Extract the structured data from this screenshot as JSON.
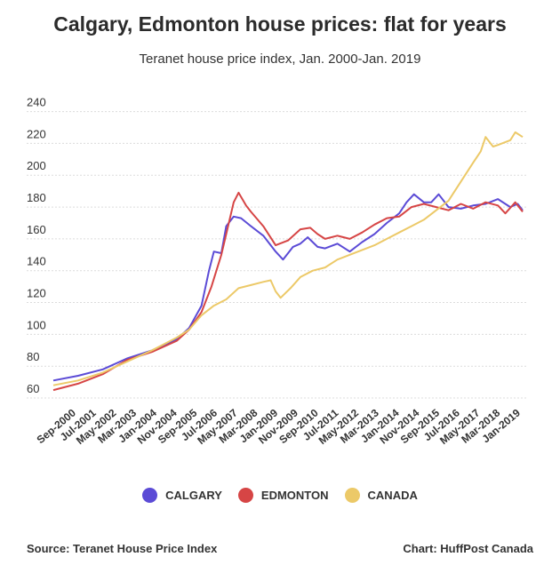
{
  "chart_data": {
    "type": "line",
    "title": "Calgary, Edmonton house prices: flat for years",
    "subtitle": "Teranet house price index, Jan. 2000-Jan. 2019",
    "x_tick_labels": [
      "Sep-2000",
      "Jul-2001",
      "May-2002",
      "Mar-2003",
      "Jan-2004",
      "Nov-2004",
      "Sep-2005",
      "Jul-2006",
      "May-2007",
      "Mar-2008",
      "Jan-2009",
      "Nov-2009",
      "Sep-2010",
      "Jul-2011",
      "May-2012",
      "Mar-2013",
      "Jan-2014",
      "Nov-2014",
      "Sep-2015",
      "Jul-2016",
      "May-2017",
      "Mar-2018",
      "Jan-2019"
    ],
    "y_ticks": [
      60,
      80,
      100,
      120,
      140,
      160,
      180,
      200,
      220,
      240
    ],
    "ylim": [
      55,
      242
    ],
    "xlim": [
      2000.0,
      2019.0
    ],
    "grid": true,
    "legend_position": "bottom",
    "series": [
      {
        "name": "CALGARY",
        "color": "#5b4bd6",
        "points": [
          [
            2000.0,
            71
          ],
          [
            2001.0,
            74
          ],
          [
            2002.0,
            78
          ],
          [
            2003.0,
            85
          ],
          [
            2004.0,
            90
          ],
          [
            2005.0,
            97
          ],
          [
            2005.5,
            104
          ],
          [
            2006.0,
            118
          ],
          [
            2006.3,
            140
          ],
          [
            2006.5,
            152
          ],
          [
            2006.8,
            151
          ],
          [
            2007.0,
            168
          ],
          [
            2007.3,
            174
          ],
          [
            2007.6,
            173
          ],
          [
            2008.0,
            168
          ],
          [
            2008.5,
            162
          ],
          [
            2009.0,
            152
          ],
          [
            2009.3,
            147
          ],
          [
            2009.7,
            155
          ],
          [
            2010.0,
            157
          ],
          [
            2010.3,
            161
          ],
          [
            2010.7,
            155
          ],
          [
            2011.0,
            154
          ],
          [
            2011.5,
            157
          ],
          [
            2012.0,
            152
          ],
          [
            2012.5,
            158
          ],
          [
            2013.0,
            163
          ],
          [
            2013.5,
            170
          ],
          [
            2014.0,
            176
          ],
          [
            2014.3,
            183
          ],
          [
            2014.6,
            188
          ],
          [
            2015.0,
            183
          ],
          [
            2015.3,
            183
          ],
          [
            2015.6,
            188
          ],
          [
            2016.0,
            180
          ],
          [
            2016.5,
            179
          ],
          [
            2017.0,
            181
          ],
          [
            2017.5,
            182
          ],
          [
            2018.0,
            185
          ],
          [
            2018.5,
            180
          ],
          [
            2018.8,
            182
          ],
          [
            2019.0,
            178
          ]
        ]
      },
      {
        "name": "EDMONTON",
        "color": "#d64545",
        "points": [
          [
            2000.0,
            65
          ],
          [
            2001.0,
            69
          ],
          [
            2002.0,
            75
          ],
          [
            2003.0,
            84
          ],
          [
            2004.0,
            89
          ],
          [
            2005.0,
            96
          ],
          [
            2005.5,
            103
          ],
          [
            2006.0,
            114
          ],
          [
            2006.4,
            130
          ],
          [
            2006.8,
            150
          ],
          [
            2007.0,
            163
          ],
          [
            2007.3,
            183
          ],
          [
            2007.5,
            189
          ],
          [
            2007.8,
            181
          ],
          [
            2008.0,
            177
          ],
          [
            2008.5,
            168
          ],
          [
            2009.0,
            156
          ],
          [
            2009.5,
            159
          ],
          [
            2010.0,
            166
          ],
          [
            2010.4,
            167
          ],
          [
            2010.7,
            163
          ],
          [
            2011.0,
            160
          ],
          [
            2011.5,
            162
          ],
          [
            2012.0,
            160
          ],
          [
            2012.5,
            164
          ],
          [
            2013.0,
            169
          ],
          [
            2013.5,
            173
          ],
          [
            2014.0,
            174
          ],
          [
            2014.5,
            180
          ],
          [
            2015.0,
            182
          ],
          [
            2015.5,
            180
          ],
          [
            2016.0,
            178
          ],
          [
            2016.5,
            182
          ],
          [
            2017.0,
            179
          ],
          [
            2017.5,
            183
          ],
          [
            2018.0,
            181
          ],
          [
            2018.3,
            176
          ],
          [
            2018.7,
            183
          ],
          [
            2019.0,
            177
          ]
        ]
      },
      {
        "name": "CANADA",
        "color": "#ecc968",
        "points": [
          [
            2000.0,
            68
          ],
          [
            2001.0,
            71
          ],
          [
            2002.0,
            76
          ],
          [
            2003.0,
            83
          ],
          [
            2004.0,
            90
          ],
          [
            2005.0,
            98
          ],
          [
            2005.5,
            103
          ],
          [
            2006.0,
            112
          ],
          [
            2006.5,
            118
          ],
          [
            2007.0,
            122
          ],
          [
            2007.5,
            129
          ],
          [
            2008.0,
            131
          ],
          [
            2008.5,
            133
          ],
          [
            2008.8,
            134
          ],
          [
            2009.0,
            127
          ],
          [
            2009.2,
            123
          ],
          [
            2009.6,
            129
          ],
          [
            2010.0,
            136
          ],
          [
            2010.5,
            140
          ],
          [
            2011.0,
            142
          ],
          [
            2011.5,
            147
          ],
          [
            2012.0,
            150
          ],
          [
            2012.5,
            153
          ],
          [
            2013.0,
            156
          ],
          [
            2013.5,
            160
          ],
          [
            2014.0,
            164
          ],
          [
            2014.5,
            168
          ],
          [
            2015.0,
            172
          ],
          [
            2015.5,
            178
          ],
          [
            2016.0,
            184
          ],
          [
            2016.5,
            196
          ],
          [
            2017.0,
            208
          ],
          [
            2017.3,
            215
          ],
          [
            2017.5,
            224
          ],
          [
            2017.8,
            218
          ],
          [
            2018.0,
            219
          ],
          [
            2018.5,
            222
          ],
          [
            2018.7,
            227
          ],
          [
            2019.0,
            224
          ]
        ]
      }
    ]
  },
  "legend": [
    {
      "label": "CALGARY",
      "color": "#5b4bd6"
    },
    {
      "label": "EDMONTON",
      "color": "#d64545"
    },
    {
      "label": "CANADA",
      "color": "#ecc968"
    }
  ],
  "footer": {
    "source": "Source: Teranet House Price Index",
    "credit": "Chart: HuffPost Canada"
  }
}
